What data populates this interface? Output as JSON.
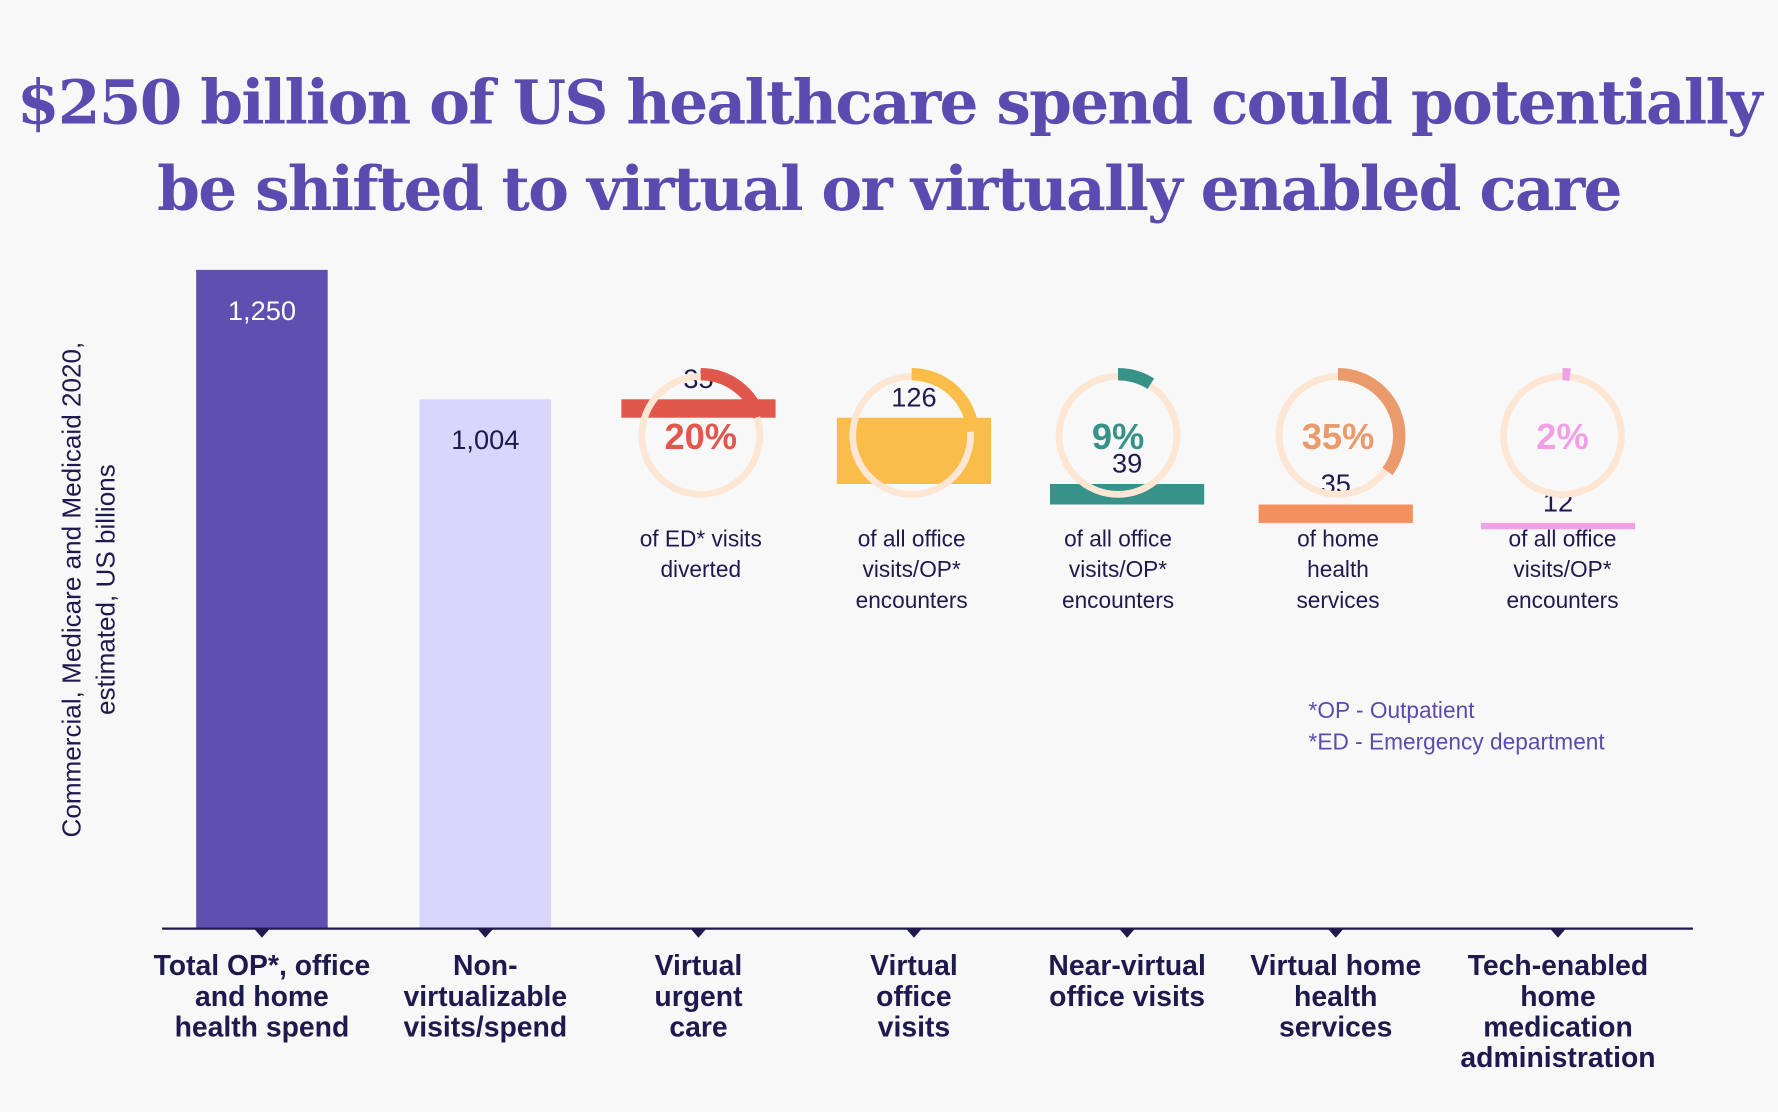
{
  "title_line1": "$250 billion of US healthcare spend could potentially",
  "title_line2": "be shifted to virtual or virtually enabled care",
  "footnotes": [
    "*OP - Outpatient",
    "*ED - Emergency department"
  ],
  "chart_data": {
    "type": "waterfall",
    "ylabel": [
      "Commercial, Medicare and Medicaid 2020,",
      "estimated, US billions"
    ],
    "categories": [
      [
        "Total OP*, office",
        "and home",
        "health spend"
      ],
      [
        "Non-",
        "virtualizable",
        "visits/spend"
      ],
      [
        "Virtual",
        "urgent",
        "care"
      ],
      [
        "Virtual",
        "office",
        "visits"
      ],
      [
        "Near-virtual",
        "office visits"
      ],
      [
        "Virtual home",
        "health",
        "services"
      ],
      [
        "Tech-enabled",
        "home",
        "medication",
        "administration"
      ]
    ],
    "values": [
      1250,
      1004,
      35,
      126,
      39,
      35,
      12
    ],
    "value_labels": [
      "1,250",
      "1,004",
      "35",
      "126",
      "39",
      "35",
      "12"
    ],
    "bar_kinds": [
      "total",
      "absolute",
      "delta",
      "delta",
      "delta",
      "delta",
      "delta"
    ],
    "colors": [
      "#5e4fb0",
      "#d8d6fd",
      "#e2574c",
      "#fbbd4a",
      "#37938a",
      "#f3925f",
      "#f2a0e6"
    ],
    "donuts": [
      {
        "percent": 20,
        "label": [
          "of ED* visits",
          "diverted"
        ],
        "color": "#e2574c"
      },
      {
        "percent": 24,
        "label": [
          "of all office",
          "visits/OP*",
          "encounters"
        ],
        "color": "#fbbd4a"
      },
      {
        "percent": 9,
        "label": [
          "of all office",
          "visits/OP*",
          "encounters"
        ],
        "color": "#37938a"
      },
      {
        "percent": 35,
        "label": [
          "of home",
          "health",
          "services"
        ],
        "color": "#eb9a6c"
      },
      {
        "percent": 2,
        "label": [
          "of all office",
          "visits/OP*",
          "encounters"
        ],
        "color": "#f2a0e6"
      }
    ],
    "donut_track_color": "#fde6d4",
    "label_color": "#1f1a4e"
  }
}
